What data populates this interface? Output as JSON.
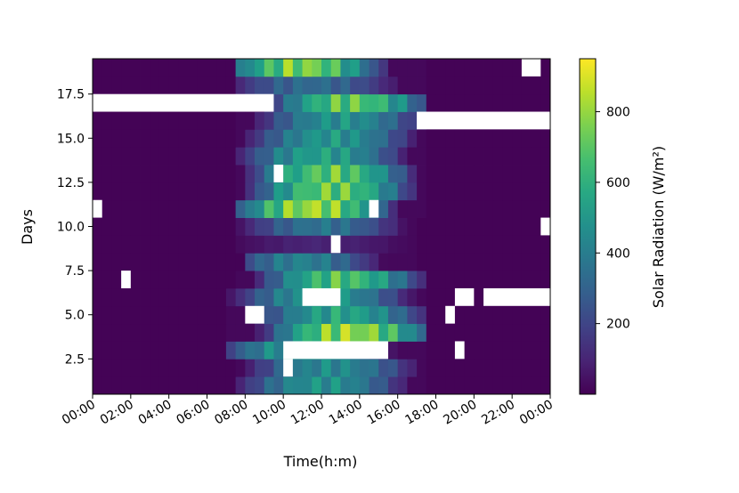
{
  "chart_data": {
    "type": "heatmap",
    "title": "",
    "xlabel": "Time(h:m)",
    "ylabel": "Days",
    "colorbar_label": "Solar Radiation (W/m²)",
    "colormap": "viridis",
    "x_tick_labels": [
      "00:00",
      "02:00",
      "04:00",
      "06:00",
      "08:00",
      "10:00",
      "12:00",
      "14:00",
      "16:00",
      "18:00",
      "20:00",
      "22:00",
      "00:00"
    ],
    "x_range_hours": [
      0,
      24
    ],
    "x_bin_hours": 0.5,
    "y_ticks": [
      2.5,
      5.0,
      7.5,
      10.0,
      12.5,
      15.0,
      17.5
    ],
    "y_tick_labels": [
      "2.5",
      "5.0",
      "7.5",
      "10.0",
      "12.5",
      "15.0",
      "17.5"
    ],
    "y_range": [
      0.5,
      19.5
    ],
    "days": [
      1,
      2,
      3,
      4,
      5,
      6,
      7,
      8,
      9,
      10,
      11,
      12,
      13,
      14,
      15,
      16,
      17,
      18,
      19
    ],
    "colorbar_range": [
      0,
      950
    ],
    "colorbar_ticks": [
      200,
      400,
      600,
      800
    ],
    "colorbar_tick_labels": [
      "200",
      "400",
      "600",
      "800"
    ],
    "daily_profiles": [
      {
        "day": 1,
        "start_h": 7.5,
        "end_h": 17.5,
        "peak_h": 12.0,
        "peak": 560
      },
      {
        "day": 2,
        "start_h": 7.5,
        "end_h": 17.5,
        "peak_h": 12.5,
        "peak": 520
      },
      {
        "day": 3,
        "start_h": 7.0,
        "end_h": 17.5,
        "peak_h": 11.0,
        "peak": 600
      },
      {
        "day": 4,
        "start_h": 7.0,
        "end_h": 17.5,
        "peak_h": 13.5,
        "peak": 930
      },
      {
        "day": 5,
        "start_h": 7.0,
        "end_h": 17.5,
        "peak_h": 13.0,
        "peak": 640
      },
      {
        "day": 6,
        "start_h": 7.0,
        "end_h": 17.5,
        "peak_h": 12.0,
        "peak": 580
      },
      {
        "day": 7,
        "start_h": 7.5,
        "end_h": 17.5,
        "peak_h": 13.0,
        "peak": 780
      },
      {
        "day": 8,
        "start_h": 8.0,
        "end_h": 17.0,
        "peak_h": 11.0,
        "peak": 480
      },
      {
        "day": 9,
        "start_h": 7.5,
        "end_h": 17.0,
        "peak_h": 12.0,
        "peak": 110
      },
      {
        "day": 10,
        "start_h": 7.5,
        "end_h": 17.0,
        "peak_h": 12.0,
        "peak": 420
      },
      {
        "day": 11,
        "start_h": 7.5,
        "end_h": 17.5,
        "peak_h": 11.5,
        "peak": 940
      },
      {
        "day": 12,
        "start_h": 7.5,
        "end_h": 17.5,
        "peak_h": 12.5,
        "peak": 840
      },
      {
        "day": 13,
        "start_h": 7.5,
        "end_h": 17.5,
        "peak_h": 12.5,
        "peak": 820
      },
      {
        "day": 14,
        "start_h": 7.5,
        "end_h": 17.5,
        "peak_h": 12.0,
        "peak": 620
      },
      {
        "day": 15,
        "start_h": 7.5,
        "end_h": 17.5,
        "peak_h": 12.5,
        "peak": 580
      },
      {
        "day": 16,
        "start_h": 7.5,
        "end_h": 17.5,
        "peak_h": 13.0,
        "peak": 560
      },
      {
        "day": 17,
        "start_h": 7.5,
        "end_h": 17.5,
        "peak_h": 13.5,
        "peak": 820
      },
      {
        "day": 18,
        "start_h": 7.5,
        "end_h": 17.5,
        "peak_h": 11.5,
        "peak": 380
      },
      {
        "day": 19,
        "start_h": 7.5,
        "end_h": 17.5,
        "peak_h": 11.0,
        "peak": 880
      }
    ],
    "missing_data": [
      {
        "day": 2,
        "from_h": 10.0,
        "to_h": 10.5
      },
      {
        "day": 3,
        "from_h": 10.0,
        "to_h": 15.5
      },
      {
        "day": 3,
        "from_h": 19.0,
        "to_h": 19.5
      },
      {
        "day": 5,
        "from_h": 8.0,
        "to_h": 9.0
      },
      {
        "day": 5,
        "from_h": 18.5,
        "to_h": 19.0
      },
      {
        "day": 6,
        "from_h": 11.0,
        "to_h": 13.0
      },
      {
        "day": 6,
        "from_h": 19.0,
        "to_h": 20.0
      },
      {
        "day": 6,
        "from_h": 20.5,
        "to_h": 24.0
      },
      {
        "day": 7,
        "from_h": 1.5,
        "to_h": 2.0
      },
      {
        "day": 9,
        "from_h": 12.5,
        "to_h": 13.0
      },
      {
        "day": 10,
        "from_h": 23.5,
        "to_h": 24.0
      },
      {
        "day": 11,
        "from_h": 0.0,
        "to_h": 0.5
      },
      {
        "day": 11,
        "from_h": 14.5,
        "to_h": 15.0
      },
      {
        "day": 13,
        "from_h": 9.5,
        "to_h": 10.0
      },
      {
        "day": 16,
        "from_h": 17.0,
        "to_h": 24.0
      },
      {
        "day": 17,
        "from_h": 0.0,
        "to_h": 9.5
      },
      {
        "day": 19,
        "from_h": 22.5,
        "to_h": 23.5
      }
    ]
  }
}
